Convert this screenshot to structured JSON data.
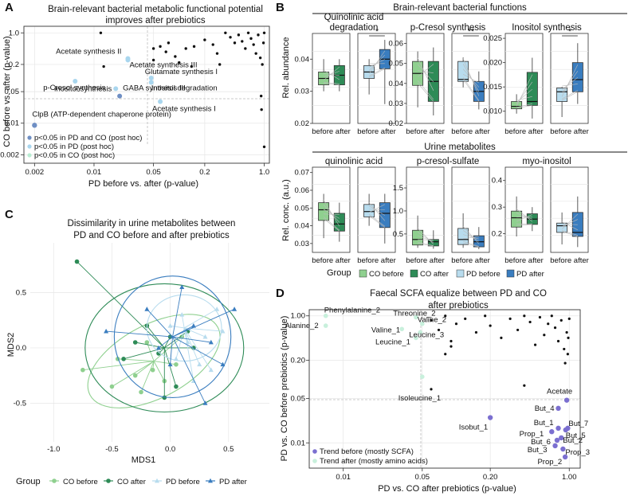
{
  "panels": {
    "A": {
      "letter": "A",
      "title_line1": "Brain-relevant bacterial metabolic functional potential",
      "title_line2": "improves after prebiotics",
      "xlabel": "PD before vs. after (p-value)",
      "ylabel": "CO before vs. after (p-value)",
      "x_ticks": [
        "0.002",
        "0.01",
        "0.05",
        "0.2",
        "1.0"
      ],
      "y_ticks": [
        "1.0",
        "0.2",
        "0.05",
        "0.01",
        "0.002"
      ],
      "legend": [
        "p<0.05 in PD and CO (post hoc)",
        "p<0.05 in PD (post hoc)",
        "p<0.05 in CO (post hoc)"
      ],
      "colors": {
        "both": "#6f8fc4",
        "pd": "#a9d6ee",
        "co": "#b9ecd2",
        "ns": "#111111"
      }
    },
    "B": {
      "letter": "B",
      "title": "Brain-relevant bacterial functions",
      "ylabel_top": "Rel. abundance",
      "subtitles_top": [
        "Quinolinic acid degradation",
        "p-Cresol synthesis",
        "Inositol synthesis"
      ],
      "yticks_top": [
        [
          "0.04",
          "0.03",
          "0.02"
        ],
        [
          "0.06",
          "0.05",
          "0.04",
          "0.03",
          "0.02"
        ],
        [
          "0.025",
          "0.020",
          "0.015",
          "0.010"
        ]
      ],
      "sig": [
        "*",
        "**",
        "*"
      ],
      "title_bottom": "Urine metabolites",
      "ylabel_bottom": "Rel. conc. (a.u.)",
      "subtitles_bottom": [
        "quinolinic acid",
        "p-cresol-sulfate",
        "myo-inositol"
      ],
      "yticks_bottom": [
        [
          "0.07",
          "0.06",
          "0.05",
          "0.04",
          "0.03"
        ],
        [
          "1.5",
          "1.0",
          "0.5"
        ],
        [
          "0.4",
          "0.3",
          "0.2"
        ]
      ],
      "xtick": "before after",
      "legend_title": "Group",
      "legend": [
        "CO before",
        "CO after",
        "PD before",
        "PD after"
      ],
      "colors": {
        "co_before": "#8fd08f",
        "co_after": "#2e8b57",
        "pd_before": "#b8dcee",
        "pd_after": "#3a7dbf"
      }
    },
    "C": {
      "letter": "C",
      "title_line1": "Dissimilarity in urine metabolites between",
      "title_line2": "PD and CO before and after prebiotics",
      "xlabel": "MDS1",
      "ylabel": "MDS2",
      "x_ticks": [
        "-1.0",
        "-0.5",
        "0.0",
        "0.5"
      ],
      "y_ticks": [
        "0.5",
        "0.0",
        "-0.5"
      ],
      "legend_title": "Group",
      "legend": [
        "CO before",
        "CO after",
        "PD before",
        "PD after"
      ]
    },
    "D": {
      "letter": "D",
      "title_line1": "Faecal SCFA equalize between PD and CO",
      "title_line2": "after prebiotics",
      "xlabel": "PD vs. CO after prebiotics (p-value)",
      "ylabel": "PD vs. CO before prebiotics (p-value)",
      "x_ticks": [
        "0.01",
        "0.05",
        "0.20",
        "1.00"
      ],
      "y_ticks": [
        "1.00",
        "0.20",
        "0.05",
        "0.01"
      ],
      "legend": [
        "Trend before (mostly SCFA)",
        "Trend after (mostly amino acids)"
      ],
      "colors": {
        "before": "#7b6fd0",
        "after": "#c8f0dc"
      }
    }
  },
  "chart_data": [
    {
      "type": "scatter",
      "title": "Brain-relevant bacterial metabolic functional potential improves after prebiotics",
      "xlabel": "PD before vs. after (p-value)",
      "ylabel": "CO before vs. after (p-value)",
      "xscale": "log",
      "yscale": "log",
      "xlim": [
        0.0015,
        1.15
      ],
      "ylim": [
        0.0013,
        1.4
      ],
      "labeled_points": [
        {
          "name": "Acetate synthesis II",
          "x": 0.025,
          "y": 0.27,
          "group": "pd"
        },
        {
          "name": "Acetate synthesis III",
          "x": 0.025,
          "y": 0.25,
          "group": "pd"
        },
        {
          "name": "p-Cresol synthesis",
          "x": 0.006,
          "y": 0.085,
          "group": "pd"
        },
        {
          "name": "Glutamate synthesis I",
          "x": 0.047,
          "y": 0.1,
          "group": "pd"
        },
        {
          "name": "Inositol degradation",
          "x": 0.047,
          "y": 0.08,
          "group": "pd"
        },
        {
          "name": "Inositol synthesis",
          "x": 0.018,
          "y": 0.058,
          "group": "pd"
        },
        {
          "name": "GABA synthesis III",
          "x": 0.02,
          "y": 0.04,
          "group": "both"
        },
        {
          "name": "Acetate synthesis I",
          "x": 0.06,
          "y": 0.03,
          "group": "pd"
        },
        {
          "name": "ClpB (ATP-dependent chaperone protein)",
          "x": 0.002,
          "y": 0.009,
          "group": "both"
        }
      ],
      "ns_points": [
        [
          0.012,
          1.0
        ],
        [
          0.05,
          0.45
        ],
        [
          0.06,
          0.5
        ],
        [
          0.07,
          0.38
        ],
        [
          0.075,
          0.6
        ],
        [
          0.09,
          0.3
        ],
        [
          0.1,
          0.22
        ],
        [
          0.12,
          0.45
        ],
        [
          0.14,
          0.18
        ],
        [
          0.15,
          0.5
        ],
        [
          0.2,
          0.7
        ],
        [
          0.25,
          0.55
        ],
        [
          0.28,
          0.35
        ],
        [
          0.3,
          0.2
        ],
        [
          0.35,
          1.0
        ],
        [
          0.4,
          0.8
        ],
        [
          0.45,
          0.6
        ],
        [
          0.5,
          0.9
        ],
        [
          0.55,
          0.65
        ],
        [
          0.6,
          0.45
        ],
        [
          0.65,
          1.0
        ],
        [
          0.7,
          0.75
        ],
        [
          0.75,
          0.55
        ],
        [
          0.8,
          0.35
        ],
        [
          0.85,
          0.9
        ],
        [
          0.9,
          0.28
        ],
        [
          0.95,
          0.2
        ],
        [
          1.0,
          1.0
        ],
        [
          0.98,
          0.6
        ],
        [
          0.92,
          0.04
        ],
        [
          0.93,
          0.02
        ],
        [
          1.0,
          0.003
        ],
        [
          0.05,
          0.25
        ],
        [
          0.013,
          0.18
        ]
      ]
    },
    {
      "type": "box",
      "title": "Brain-relevant bacterial functions",
      "ylabel": "Rel. abundance",
      "categories": [
        "CO before",
        "CO after",
        "PD before",
        "PD after"
      ],
      "facets": [
        {
          "name": "Quinolinic acid degradation",
          "ylim": [
            0.02,
            0.048
          ],
          "medians": [
            0.034,
            0.035,
            0.036,
            0.04
          ],
          "q1": [
            0.032,
            0.032,
            0.034,
            0.037
          ],
          "q3": [
            0.036,
            0.038,
            0.038,
            0.043
          ],
          "min": [
            0.03,
            0.03,
            0.029,
            0.026
          ],
          "max": [
            0.04,
            0.04,
            0.04,
            0.046
          ],
          "significance": "*"
        },
        {
          "name": "p-Cresol synthesis",
          "ylim": [
            0.02,
            0.065
          ],
          "medians": [
            0.045,
            0.041,
            0.042,
            0.036
          ],
          "q1": [
            0.039,
            0.031,
            0.041,
            0.031
          ],
          "q3": [
            0.051,
            0.051,
            0.051,
            0.041
          ],
          "min": [
            0.028,
            0.024,
            0.038,
            0.027
          ],
          "max": [
            0.056,
            0.058,
            0.053,
            0.046
          ],
          "significance": "**"
        },
        {
          "name": "Inositol synthesis",
          "ylim": [
            0.0075,
            0.026
          ],
          "medians": [
            0.011,
            0.012,
            0.014,
            0.0165
          ],
          "q1": [
            0.0105,
            0.0112,
            0.012,
            0.014
          ],
          "q3": [
            0.012,
            0.018,
            0.0148,
            0.02
          ],
          "min": [
            0.0095,
            0.0085,
            0.0088,
            0.0115
          ],
          "max": [
            0.0135,
            0.021,
            0.015,
            0.024
          ],
          "significance": "*"
        }
      ]
    },
    {
      "type": "box",
      "title": "Urine metabolites",
      "ylabel": "Rel. conc. (a.u.)",
      "categories": [
        "CO before",
        "CO after",
        "PD before",
        "PD after"
      ],
      "facets": [
        {
          "name": "quinolinic acid",
          "ylim": [
            0.025,
            0.073
          ],
          "medians": [
            0.049,
            0.041,
            0.048,
            0.047
          ],
          "q1": [
            0.043,
            0.037,
            0.045,
            0.039
          ],
          "q3": [
            0.053,
            0.047,
            0.052,
            0.053
          ],
          "min": [
            0.033,
            0.031,
            0.04,
            0.03
          ],
          "max": [
            0.058,
            0.053,
            0.058,
            0.058
          ],
          "significance": ""
        },
        {
          "name": "p-cresol-sulfate",
          "ylim": [
            0.1,
            1.95
          ],
          "medians": [
            0.38,
            0.33,
            0.38,
            0.33
          ],
          "q1": [
            0.26,
            0.24,
            0.27,
            0.22
          ],
          "q3": [
            0.58,
            0.38,
            0.62,
            0.46
          ],
          "min": [
            0.2,
            0.18,
            0.2,
            0.17
          ],
          "max": [
            0.9,
            0.58,
            0.95,
            0.65
          ],
          "significance": ""
        },
        {
          "name": "myo-inositol",
          "ylim": [
            0.13,
            0.45
          ],
          "medians": [
            0.26,
            0.255,
            0.23,
            0.205
          ],
          "q1": [
            0.225,
            0.235,
            0.205,
            0.19
          ],
          "q3": [
            0.285,
            0.275,
            0.24,
            0.28
          ],
          "min": [
            0.19,
            0.21,
            0.16,
            0.15
          ],
          "max": [
            0.34,
            0.3,
            0.28,
            0.34
          ],
          "significance": ""
        }
      ]
    },
    {
      "type": "scatter",
      "title": "Dissimilarity in urine metabolites between PD and CO before and after prebiotics",
      "xlabel": "MDS1",
      "ylabel": "MDS2",
      "xlim": [
        -1.2,
        0.85
      ],
      "ylim": [
        -0.85,
        0.95
      ],
      "centroids": {
        "CO before": [
          -0.14,
          -0.12
        ],
        "CO after": [
          -0.05,
          0.0
        ],
        "PD before": [
          0.12,
          0.18
        ],
        "PD after": [
          0.02,
          0.1
        ]
      },
      "series": [
        {
          "name": "CO before",
          "points": [
            [
              -0.75,
              -0.2
            ],
            [
              -0.5,
              -0.35
            ],
            [
              -0.45,
              -0.1
            ],
            [
              -0.3,
              -0.25
            ],
            [
              -0.2,
              0.05
            ],
            [
              -0.15,
              -0.2
            ],
            [
              -0.05,
              -0.3
            ],
            [
              0.05,
              -0.15
            ],
            [
              0.1,
              0.1
            ],
            [
              -0.25,
              -0.4
            ]
          ]
        },
        {
          "name": "CO after",
          "points": [
            [
              -0.8,
              0.78
            ],
            [
              -0.4,
              -0.1
            ],
            [
              -0.2,
              0.2
            ],
            [
              -0.1,
              -0.05
            ],
            [
              0.0,
              0.1
            ],
            [
              0.05,
              -0.35
            ],
            [
              0.15,
              0.15
            ],
            [
              -0.05,
              -0.45
            ],
            [
              0.2,
              0.0
            ],
            [
              -0.3,
              0.05
            ]
          ]
        },
        {
          "name": "PD before",
          "points": [
            [
              0.3,
              0.1
            ],
            [
              0.25,
              -0.15
            ],
            [
              0.1,
              0.3
            ],
            [
              0.05,
              -0.1
            ],
            [
              0.4,
              0.35
            ],
            [
              0.15,
              0.05
            ],
            [
              0.35,
              -0.2
            ],
            [
              0.0,
              0.2
            ],
            [
              0.2,
              -0.3
            ],
            [
              0.45,
              0.15
            ]
          ]
        },
        {
          "name": "PD after",
          "points": [
            [
              -0.55,
              0.15
            ],
            [
              -0.2,
              0.35
            ],
            [
              0.1,
              0.55
            ],
            [
              0.35,
              0.05
            ],
            [
              0.3,
              -0.5
            ],
            [
              0.45,
              -0.15
            ],
            [
              0.0,
              -0.15
            ],
            [
              -0.1,
              0.0
            ],
            [
              0.55,
              0.35
            ],
            [
              0.2,
              0.2
            ]
          ]
        }
      ]
    },
    {
      "type": "scatter",
      "title": "Faecal SCFA equalize between PD and CO after prebiotics",
      "xlabel": "PD vs. CO after prebiotics (p-value)",
      "ylabel": "PD vs. CO before prebiotics (p-value)",
      "xscale": "log",
      "yscale": "log",
      "xlim": [
        0.005,
        1.25
      ],
      "ylim": [
        0.004,
        1.25
      ],
      "labeled_points": [
        {
          "name": "Phenylalanine_2",
          "x": 0.007,
          "y": 1.0,
          "group": "after"
        },
        {
          "name": "Threonine_2",
          "x": 0.044,
          "y": 0.95,
          "group": "after"
        },
        {
          "name": "Alanine_2",
          "x": 0.007,
          "y": 0.7,
          "group": "after"
        },
        {
          "name": "Valine_2",
          "x": 0.05,
          "y": 0.75,
          "group": "after"
        },
        {
          "name": "Valine_1",
          "x": 0.033,
          "y": 0.62,
          "group": "after"
        },
        {
          "name": "Leucine_3",
          "x": 0.048,
          "y": 0.55,
          "group": "after"
        },
        {
          "name": "Leucine_1",
          "x": 0.044,
          "y": 0.45,
          "group": "after"
        },
        {
          "name": "Isoleucine_1",
          "x": 0.05,
          "y": 0.11,
          "group": "after"
        },
        {
          "name": "Acetate",
          "x": 0.95,
          "y": 0.047,
          "group": "before"
        },
        {
          "name": "But_4",
          "x": 0.8,
          "y": 0.035,
          "group": "before"
        },
        {
          "name": "Isobut_1",
          "x": 0.2,
          "y": 0.025,
          "group": "before"
        },
        {
          "name": "But_1",
          "x": 0.8,
          "y": 0.017,
          "group": "before"
        },
        {
          "name": "But_7",
          "x": 0.97,
          "y": 0.017,
          "group": "before"
        },
        {
          "name": "But_5",
          "x": 0.93,
          "y": 0.016,
          "group": "before"
        },
        {
          "name": "Prop_1",
          "x": 0.7,
          "y": 0.015,
          "group": "before"
        },
        {
          "name": "But_2",
          "x": 0.85,
          "y": 0.012,
          "group": "before"
        },
        {
          "name": "But_6",
          "x": 0.78,
          "y": 0.011,
          "group": "before"
        },
        {
          "name": "But_3",
          "x": 0.75,
          "y": 0.009,
          "group": "before"
        },
        {
          "name": "Prop_3",
          "x": 0.88,
          "y": 0.008,
          "group": "before"
        },
        {
          "name": "Prop_2",
          "x": 0.92,
          "y": 0.006,
          "group": "before"
        }
      ],
      "ns_points": [
        [
          0.06,
          0.85
        ],
        [
          0.07,
          0.6
        ],
        [
          0.08,
          1.0
        ],
        [
          0.09,
          0.4
        ],
        [
          0.1,
          0.75
        ],
        [
          0.12,
          0.9
        ],
        [
          0.15,
          0.55
        ],
        [
          0.18,
          1.0
        ],
        [
          0.2,
          0.7
        ],
        [
          0.25,
          0.45
        ],
        [
          0.3,
          0.9
        ],
        [
          0.35,
          0.6
        ],
        [
          0.4,
          1.0
        ],
        [
          0.45,
          0.8
        ],
        [
          0.5,
          0.35
        ],
        [
          0.55,
          0.95
        ],
        [
          0.6,
          0.5
        ],
        [
          0.65,
          0.75
        ],
        [
          0.7,
          1.0
        ],
        [
          0.75,
          0.65
        ],
        [
          0.8,
          0.4
        ],
        [
          0.85,
          0.85
        ],
        [
          0.9,
          0.3
        ],
        [
          0.95,
          0.55
        ],
        [
          1.0,
          0.9
        ],
        [
          0.98,
          0.45
        ],
        [
          0.97,
          0.25
        ],
        [
          0.92,
          0.18
        ],
        [
          0.4,
          0.08
        ],
        [
          0.06,
          0.07
        ],
        [
          0.08,
          0.25
        ],
        [
          0.09,
          0.33
        ]
      ]
    }
  ]
}
